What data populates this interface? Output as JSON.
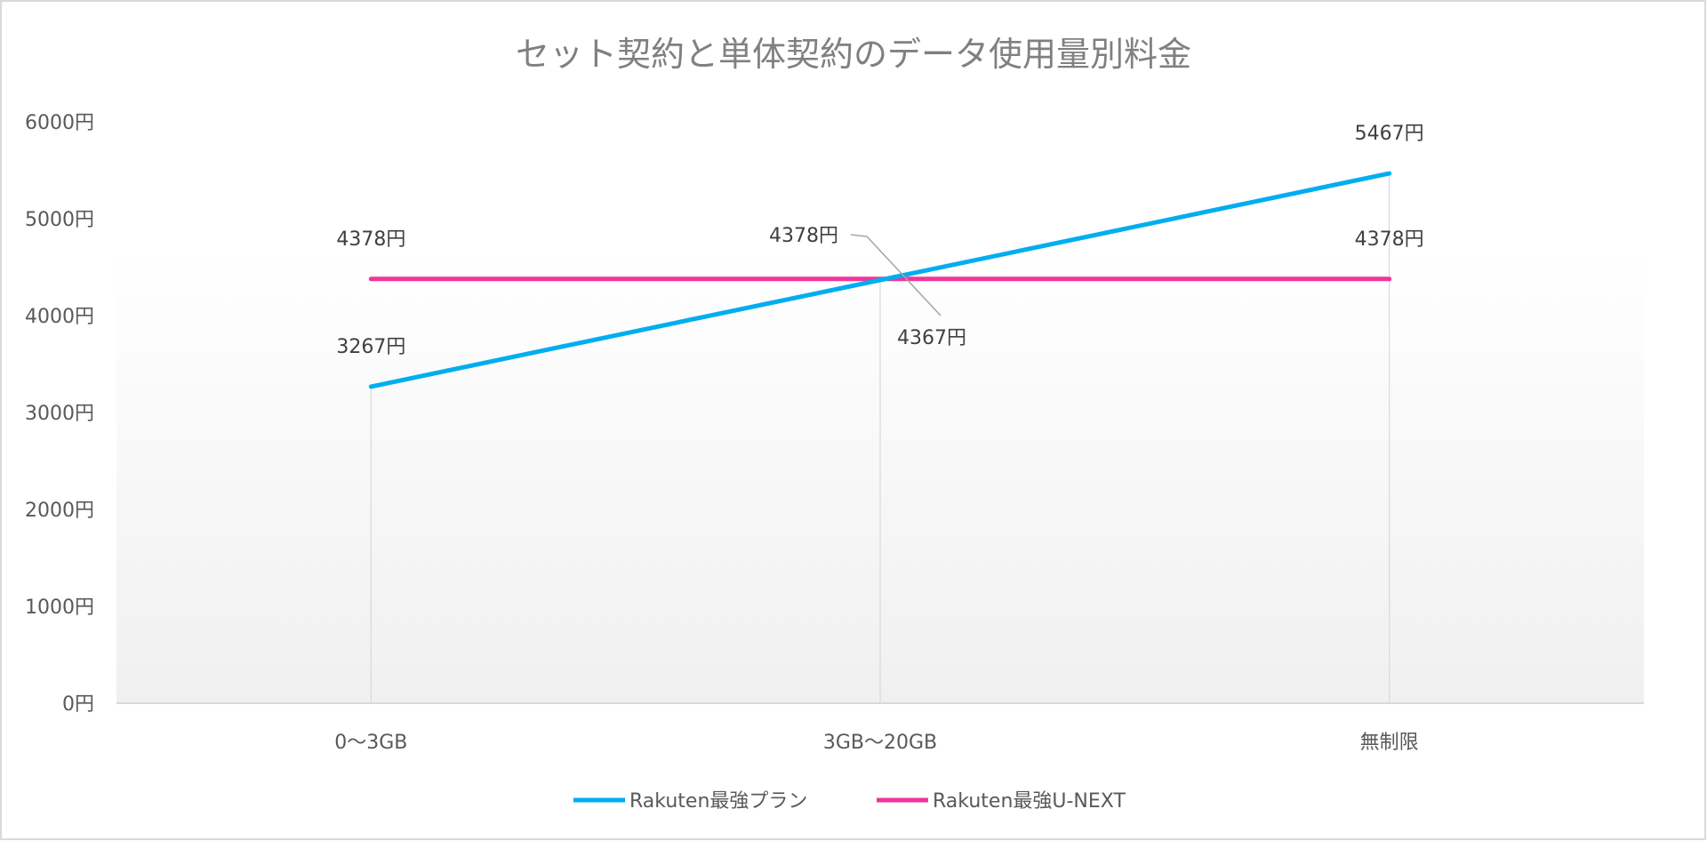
{
  "chart_data": {
    "type": "line",
    "title": "セット契約と単体契約のデータ使用量別料金",
    "categories": [
      "0〜3GB",
      "3GB〜20GB",
      "無制限"
    ],
    "ylim": [
      0,
      6000
    ],
    "yticks": [
      0,
      1000,
      2000,
      3000,
      4000,
      5000,
      6000
    ],
    "ytick_labels": [
      "0円",
      "1000円",
      "2000円",
      "3000円",
      "4000円",
      "5000円",
      "6000円"
    ],
    "grid": "vertical category lines",
    "legend": "bottom",
    "series": [
      {
        "name": "Rakuten最強プラン",
        "values": [
          3267,
          4367,
          5467
        ],
        "labels": [
          "3267円",
          "4367円",
          "5467円"
        ],
        "color": "#00AEEF"
      },
      {
        "name": "Rakuten最強U-NEXT",
        "values": [
          4378,
          4378,
          4378
        ],
        "labels": [
          "4378円",
          "4378円",
          "4378円"
        ],
        "color": "#F0359A"
      }
    ]
  }
}
